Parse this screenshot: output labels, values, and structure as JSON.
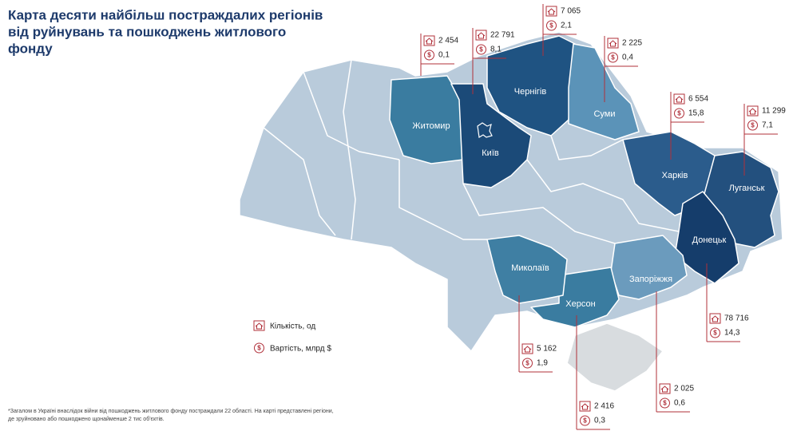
{
  "title": [
    "Карта десяти найбільш постраждалих регіонів",
    "від руйнувань та пошкоджень житлового",
    "фонду"
  ],
  "regions": [
    {
      "name": "Житомир",
      "count": "2 454",
      "cost": "0,1"
    },
    {
      "name": "Київ",
      "count": "22 791",
      "cost": "8,1"
    },
    {
      "name": "Чернігів",
      "count": "7 065",
      "cost": "2,1"
    },
    {
      "name": "Суми",
      "count": "2 225",
      "cost": "0,4"
    },
    {
      "name": "Харків",
      "count": "6 554",
      "cost": "15,8"
    },
    {
      "name": "Луганськ",
      "count": "11 299",
      "cost": "7,1"
    },
    {
      "name": "Донецьк",
      "count": "78 716",
      "cost": "14,3"
    },
    {
      "name": "Миколаїв",
      "count": "5 162",
      "cost": "1,9"
    },
    {
      "name": "Херсон",
      "count": "2 416",
      "cost": "0,3"
    },
    {
      "name": "Запоріжжя",
      "count": "2 025",
      "cost": "0,6"
    }
  ],
  "legend": {
    "count": "Кількість, од",
    "cost": "Вартість, млрд $"
  },
  "footnote": [
    "*Загалом в Україні внаслідок війни від пошкоджень житлового фонду постраждали 22 області. На карті представлені регіони,",
    "де зруйновано або пошкоджено щонайменше 2 тис об'єктів."
  ]
}
